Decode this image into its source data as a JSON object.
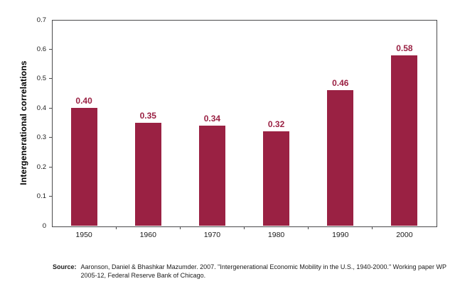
{
  "chart_data": {
    "type": "bar",
    "title": "",
    "xlabel": "",
    "ylabel": "Intergenerational correlations",
    "categories": [
      "1950",
      "1960",
      "1970",
      "1980",
      "1990",
      "2000"
    ],
    "values": [
      0.4,
      0.35,
      0.34,
      0.32,
      0.46,
      0.58
    ],
    "value_labels": [
      "0.40",
      "0.35",
      "0.34",
      "0.32",
      "0.46",
      "0.58"
    ],
    "ylim": [
      0,
      0.7
    ],
    "ytick_step": 0.1,
    "ytick_labels": [
      "0",
      "0.1",
      "0.2",
      "0.3",
      "0.4",
      "0.5",
      "0.6",
      "0.7"
    ],
    "grid": false,
    "legend": null,
    "colors": {
      "bar": "#9A2143",
      "value_label": "#9A2143",
      "axis": "#4A4A4C",
      "tick_text": "#1A1A1A"
    }
  },
  "source": {
    "label": "Source:",
    "text": "Aaronson, Daniel & Bhashkar Mazumder. 2007. \"Intergenerational Economic Mobility in the U.S., 1940-2000.\" Working paper WP 2005-12, Federal Reserve Bank of Chicago."
  }
}
